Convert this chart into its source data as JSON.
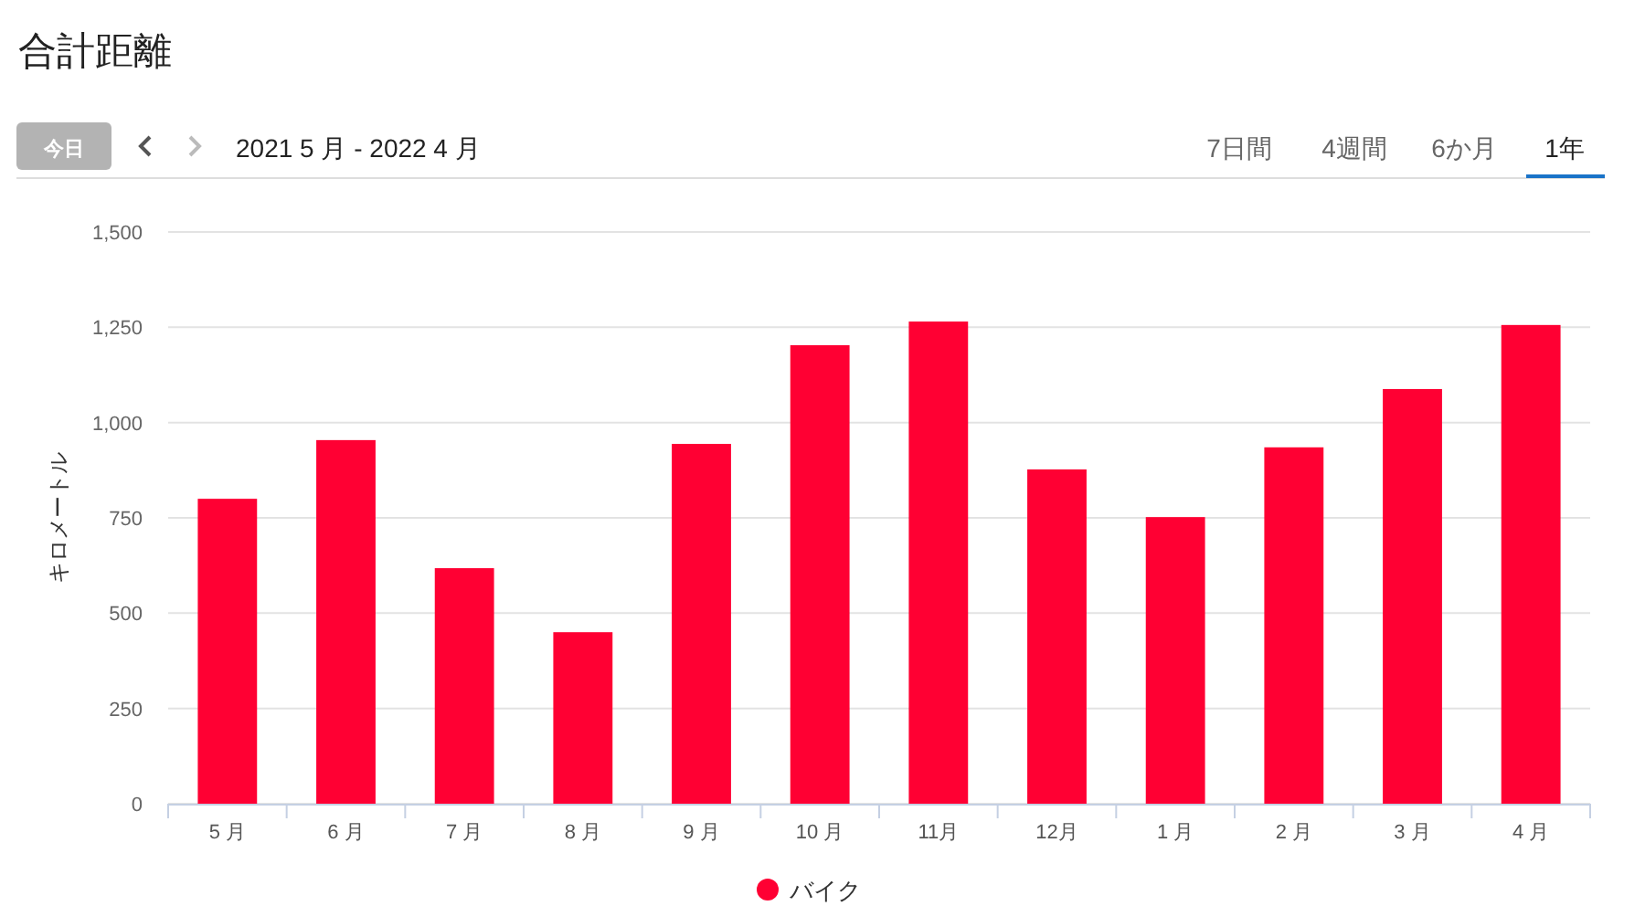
{
  "chart_data": {
    "type": "bar",
    "title": "合計距離",
    "ylabel": "キロメートル",
    "annotations": [
      "今日",
      "2021 5 月 - 2022 4 月",
      "7日間",
      "4週間",
      "6か月",
      "1年"
    ],
    "categories": [
      "5 月",
      "6 月",
      "7 月",
      "8 月",
      "9 月",
      "10 月",
      "11月",
      "12月",
      "1 月",
      "2 月",
      "3 月",
      "4 月"
    ],
    "series": [
      {
        "name": "バイク",
        "color": "#ff0033",
        "values": [
          800,
          954,
          618,
          450,
          944,
          1203,
          1265,
          877,
          752,
          935,
          1088,
          1256
        ]
      }
    ],
    "ylim": [
      0,
      1500
    ],
    "yticks": [
      0,
      {
        "value": 250,
        "label": "250"
      },
      {
        "value": 500,
        "label": "500"
      },
      {
        "value": 750,
        "label": "750"
      },
      {
        "value": 1000,
        "label": "1,000"
      },
      {
        "value": 1250,
        "label": "1,250"
      },
      {
        "value": 1500,
        "label": "1,500"
      }
    ],
    "grid": "y",
    "legend": "bottom"
  }
}
